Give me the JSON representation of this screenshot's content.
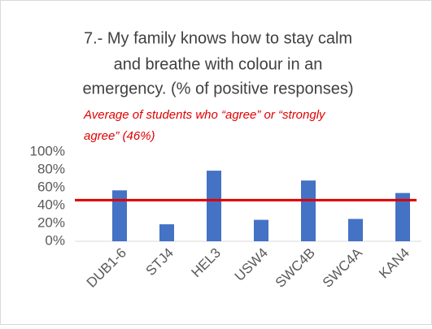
{
  "chart_data": {
    "type": "bar",
    "title": [
      "7.- My family knows how to stay calm",
      "and breathe with colour in an",
      "emergency. (% of positive responses)"
    ],
    "annotation": [
      "Average of students who “agree” or “strongly",
      "agree” (46%)"
    ],
    "categories": [
      "DUB1-6",
      "STJ4",
      "HEL3",
      "USW4",
      "SWC4B",
      "SWC4A",
      "KAN4"
    ],
    "values": [
      57,
      19,
      79,
      24,
      68,
      25,
      54
    ],
    "color": "#4472c4",
    "reference_line": {
      "value": 46,
      "color": "#e00000"
    },
    "ylim": [
      0,
      100
    ],
    "yticks": [
      {
        "value": 0,
        "label": "0%"
      },
      {
        "value": 20,
        "label": "20%"
      },
      {
        "value": 40,
        "label": "40%"
      },
      {
        "value": 60,
        "label": "60%"
      },
      {
        "value": 80,
        "label": "80%"
      },
      {
        "value": 100,
        "label": "100%"
      }
    ],
    "grid": false
  }
}
